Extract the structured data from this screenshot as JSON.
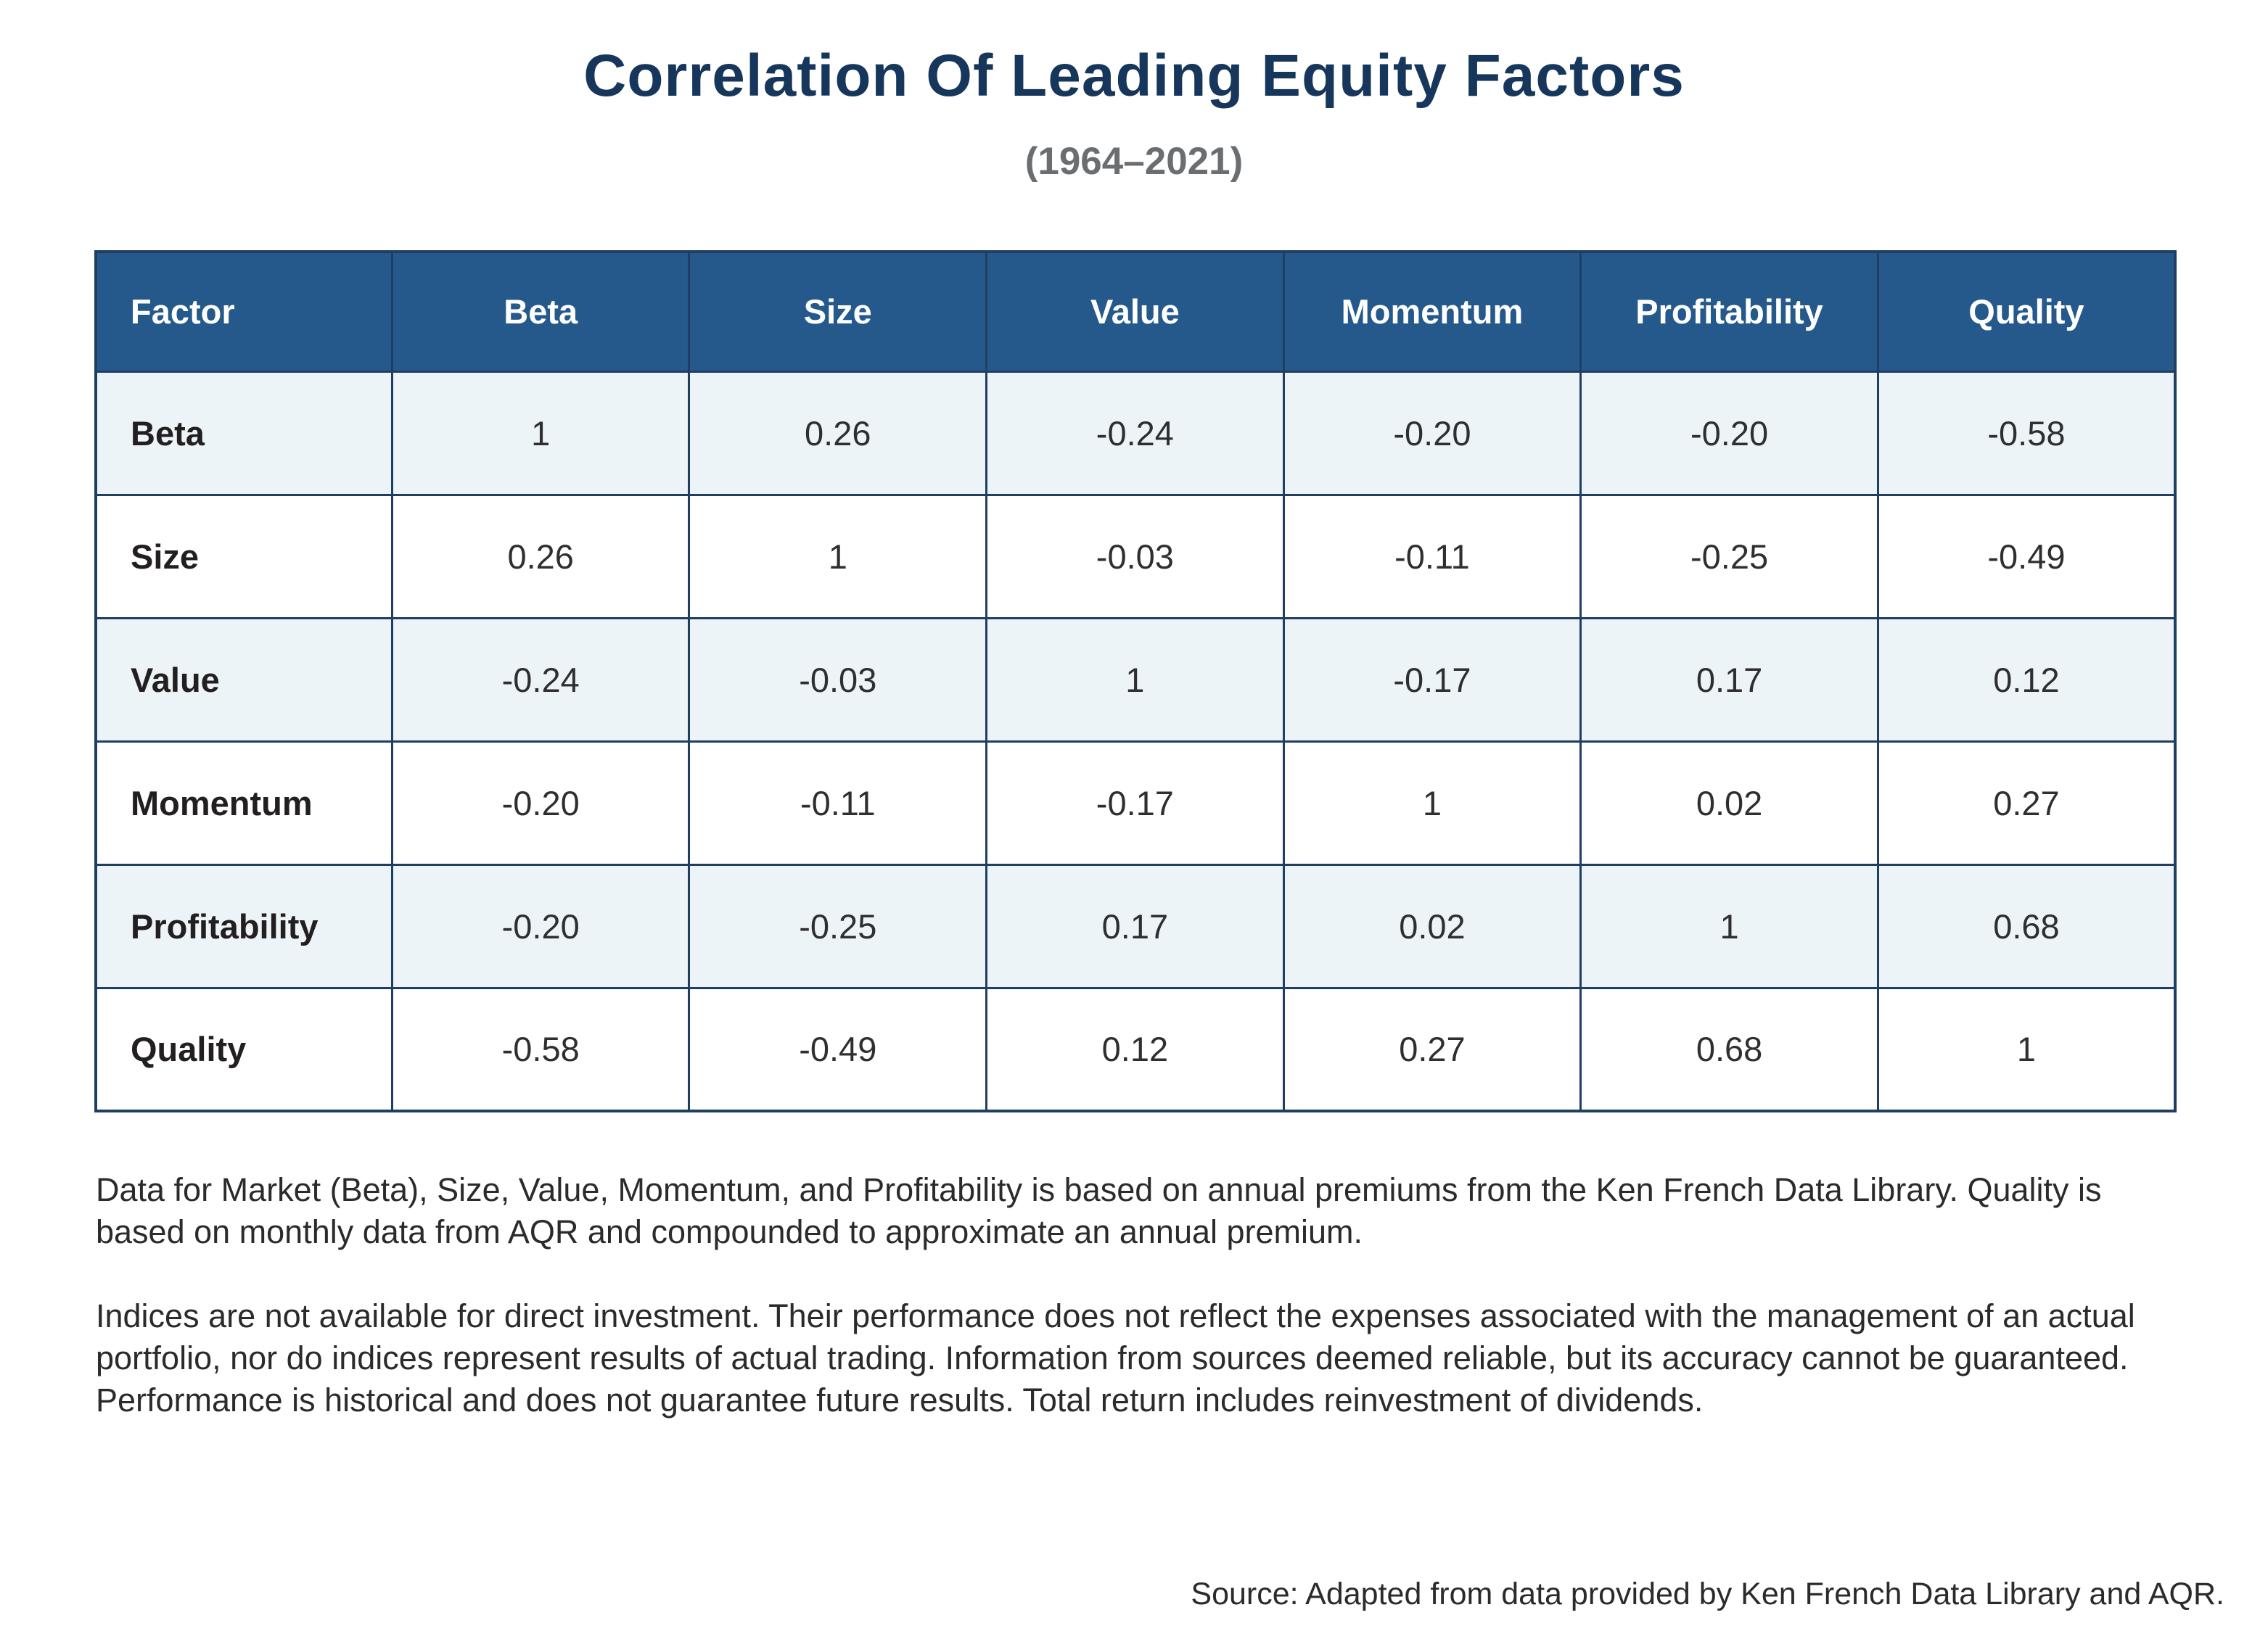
{
  "title": "Correlation Of Leading Equity Factors",
  "subtitle": "(1964–2021)",
  "chart_data": {
    "type": "table",
    "title": "Correlation Of Leading Equity Factors",
    "subtitle": "(1964–2021)",
    "columns": [
      "Factor",
      "Beta",
      "Size",
      "Value",
      "Momentum",
      "Profitability",
      "Quality"
    ],
    "rows": [
      {
        "label": "Beta",
        "values": [
          "1",
          "0.26",
          "-0.24",
          "-0.20",
          "-0.20",
          "-0.58"
        ]
      },
      {
        "label": "Size",
        "values": [
          "0.26",
          "1",
          "-0.03",
          "-0.11",
          "-0.25",
          "-0.49"
        ]
      },
      {
        "label": "Value",
        "values": [
          "-0.24",
          "-0.03",
          "1",
          "-0.17",
          "0.17",
          "0.12"
        ]
      },
      {
        "label": "Momentum",
        "values": [
          "-0.20",
          "-0.11",
          "-0.17",
          "1",
          "0.02",
          "0.27"
        ]
      },
      {
        "label": "Profitability",
        "values": [
          "-0.20",
          "-0.25",
          "0.17",
          "0.02",
          "1",
          "0.68"
        ]
      },
      {
        "label": "Quality",
        "values": [
          "-0.58",
          "-0.49",
          "0.12",
          "0.27",
          "0.68",
          "1"
        ]
      }
    ]
  },
  "footnotes": [
    "Data for Market (Beta), Size, Value, Momentum, and Profitability is based on annual premiums from the Ken French Data Library. Quality is based on monthly data from AQR and compounded to approximate an annual premium.",
    "Indices are not available for direct investment. Their performance does not reflect the expenses associated with the management of an actual portfolio, nor do indices represent results of actual trading. Information from sources deemed reliable, but its accuracy cannot be guaranteed. Performance is historical and does not guarantee future results. Total return includes reinvestment of dividends."
  ],
  "source": "Source: Adapted from data provided by Ken French Data Library and AQR.",
  "colors": {
    "header_bg": "#25598C",
    "row_alt_bg": "#EDF4F8",
    "border": "#1E3F63",
    "title": "#16365B",
    "subtitle": "#6A6E71"
  }
}
